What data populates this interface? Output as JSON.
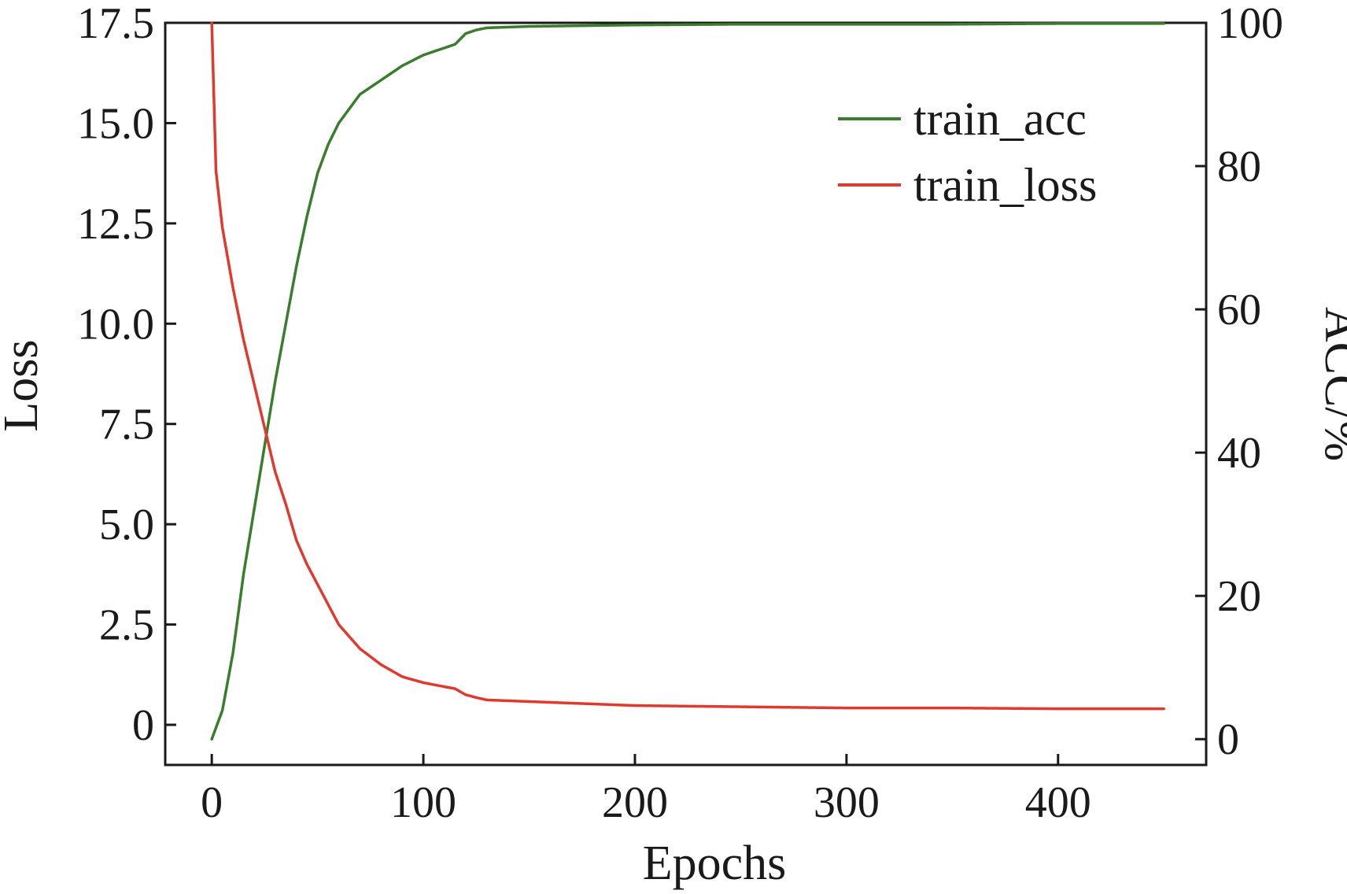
{
  "chart_data": {
    "type": "line",
    "title": "",
    "xlabel": "Epochs",
    "ylabel_left": "Loss",
    "ylabel_right": "ACC/%",
    "xlim": [
      -22,
      470
    ],
    "ylim_left": [
      -1,
      17.5
    ],
    "ylim_right": [
      -3.6,
      100
    ],
    "x_ticks": [
      0,
      100,
      200,
      300,
      400
    ],
    "x_tick_labels": [
      "0",
      "100",
      "200",
      "300",
      "400"
    ],
    "y_left_ticks": [
      0,
      2.5,
      5.0,
      7.5,
      10.0,
      12.5,
      15.0,
      17.5
    ],
    "y_left_tick_labels": [
      "0",
      "2.5",
      "5.0",
      "7.5",
      "10.0",
      "12.5",
      "15.0",
      "17.5"
    ],
    "y_right_ticks": [
      0,
      20,
      40,
      60,
      80,
      100
    ],
    "y_right_tick_labels": [
      "0",
      "20",
      "40",
      "60",
      "80",
      "100"
    ],
    "grid": false,
    "legend_position": "top-right",
    "series": [
      {
        "name": "train_acc",
        "axis": "right",
        "color": "#3a7d2c",
        "x": [
          0,
          5,
          10,
          15,
          20,
          25,
          30,
          35,
          40,
          45,
          50,
          55,
          60,
          65,
          70,
          80,
          90,
          100,
          110,
          115,
          120,
          125,
          130,
          150,
          200,
          250,
          300,
          350,
          400,
          450
        ],
        "values": [
          0,
          4,
          12,
          23,
          32,
          41,
          50,
          58,
          66,
          73,
          79,
          83,
          86,
          88,
          90,
          92,
          94,
          95.5,
          96.5,
          97,
          98.5,
          99,
          99.3,
          99.5,
          99.7,
          99.8,
          99.8,
          99.8,
          99.9,
          99.9
        ]
      },
      {
        "name": "train_loss",
        "axis": "left",
        "color": "#e03a2f",
        "x": [
          0,
          2,
          5,
          10,
          15,
          20,
          25,
          30,
          35,
          40,
          45,
          50,
          60,
          70,
          80,
          90,
          100,
          110,
          115,
          120,
          125,
          130,
          150,
          200,
          250,
          300,
          350,
          400,
          450
        ],
        "values": [
          17.5,
          13.8,
          12.4,
          10.9,
          9.6,
          8.5,
          7.4,
          6.3,
          5.5,
          4.6,
          4.0,
          3.5,
          2.5,
          1.9,
          1.5,
          1.2,
          1.05,
          0.95,
          0.9,
          0.75,
          0.68,
          0.62,
          0.58,
          0.48,
          0.45,
          0.42,
          0.42,
          0.4,
          0.4
        ]
      }
    ]
  }
}
